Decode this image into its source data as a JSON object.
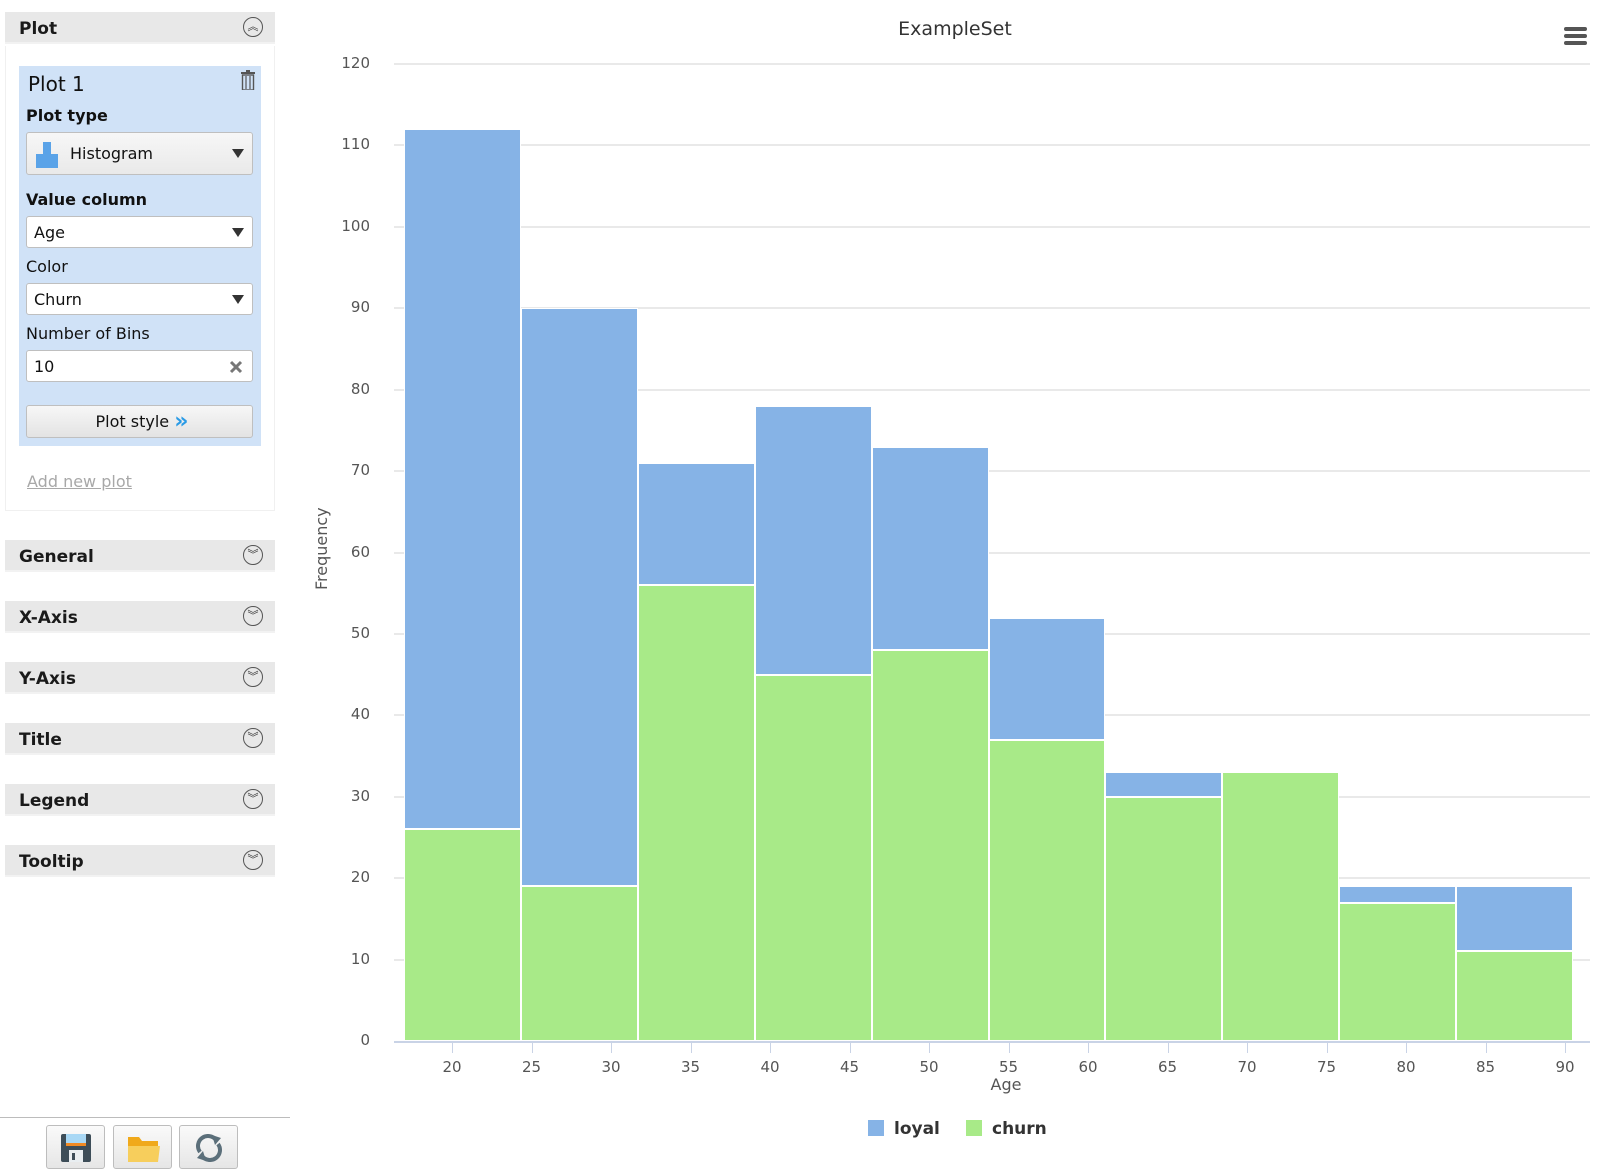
{
  "sidebar": {
    "plot_section": {
      "label": "Plot",
      "expanded": true
    },
    "plot_panel": {
      "title": "Plot 1",
      "plot_type_label": "Plot type",
      "plot_type_value": "Histogram",
      "value_column_label": "Value column",
      "value_column_value": "Age",
      "color_label": "Color",
      "color_value": "Churn",
      "bins_label": "Number of Bins",
      "bins_value": "10",
      "plot_style_button": "Plot style"
    },
    "add_new_plot": "Add new plot",
    "sections": [
      {
        "label": "General"
      },
      {
        "label": "X-Axis"
      },
      {
        "label": "Y-Axis"
      },
      {
        "label": "Title"
      },
      {
        "label": "Legend"
      },
      {
        "label": "Tooltip"
      }
    ],
    "toolbar": [
      "save-icon",
      "open-folder-icon",
      "refresh-icon"
    ]
  },
  "colors": {
    "loyal": "#86b3e6",
    "churn": "#a8ea88",
    "panel": "#d0e2f7",
    "accent": "#2a9be6"
  },
  "chart_data": {
    "type": "bar",
    "subtype": "stacked histogram",
    "title": "ExampleSet",
    "xlabel": "Age",
    "ylabel": "Frequency",
    "ylim": [
      0,
      120
    ],
    "yticks": [
      0,
      10,
      20,
      30,
      40,
      50,
      60,
      70,
      80,
      90,
      100,
      110,
      120
    ],
    "xticks": [
      20,
      25,
      30,
      35,
      40,
      45,
      50,
      55,
      60,
      65,
      70,
      75,
      80,
      85,
      90
    ],
    "xlim": [
      16.5,
      91
    ],
    "grid": true,
    "legend_position": "bottom",
    "bin_edges": [
      17,
      24.35,
      31.7,
      39.05,
      46.4,
      53.75,
      61.1,
      68.45,
      75.8,
      83.15,
      90.5
    ],
    "series": [
      {
        "name": "loyal",
        "color": "#86b3e6",
        "values": [
          86,
          71,
          15,
          33,
          25,
          15,
          3,
          0,
          2,
          8
        ]
      },
      {
        "name": "churn",
        "color": "#a8ea88",
        "values": [
          26,
          19,
          56,
          45,
          48,
          37,
          30,
          33,
          17,
          11
        ]
      }
    ],
    "totals": [
      112,
      90,
      71,
      78,
      73,
      52,
      33,
      33,
      19,
      19
    ]
  }
}
